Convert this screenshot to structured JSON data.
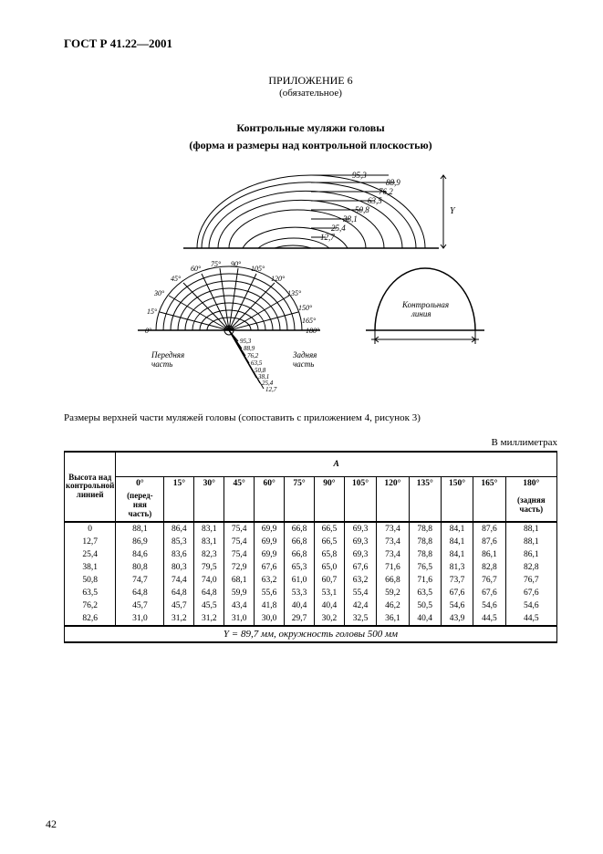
{
  "doc_header": "ГОСТ Р 41.22—2001",
  "appendix_label": "ПРИЛОЖЕНИЕ 6",
  "appendix_note": "(обязательное)",
  "figure_title": "Контрольные муляжи головы",
  "figure_subtitle": "(форма и размеры над контрольной плоскостью)",
  "fig1": {
    "arc_labels": [
      "95,3",
      "88,9",
      "76,2",
      "63,5",
      "50,8",
      "38,1",
      "25,4",
      "12,7"
    ],
    "y_label": "Y",
    "y_label_italic": true
  },
  "fig2": {
    "angle_labels_left": [
      "0°",
      "15°",
      "30°",
      "45°",
      "60°",
      "75°",
      "90°",
      "105°",
      "120°",
      "135°",
      "150°",
      "165°",
      "180°"
    ],
    "radial_labels": [
      "95,3",
      "88,9",
      "76,2",
      "63,5",
      "50,8",
      "38,1",
      "25,4",
      "12,7"
    ],
    "front_label": "Передняя\nчасть",
    "rear_label": "Задняя\nчасть",
    "right_label": "Контрольная\nлиния"
  },
  "caption": "Размеры верхней части муляжей головы (сопоставить с приложением 4, рисунок 3)",
  "units": "В миллиметрах",
  "table": {
    "top_header": "А",
    "row_header": "Высота над\nконтрольной\nлинией",
    "angles": [
      "0°",
      "15°",
      "30°",
      "45°",
      "60°",
      "75°",
      "90°",
      "105°",
      "120°",
      "135°",
      "150°",
      "165°",
      "180°"
    ],
    "angle_note_0": "(перед-\nняя\nчасть)",
    "angle_note_180": "(задняя\nчасть)",
    "heights": [
      "0",
      "12,7",
      "25,4",
      "38,1",
      "50,8",
      "63,5",
      "76,2",
      "82,6"
    ],
    "rows": [
      [
        "88,1",
        "86,4",
        "83,1",
        "75,4",
        "69,9",
        "66,8",
        "66,5",
        "69,3",
        "73,4",
        "78,8",
        "84,1",
        "87,6",
        "88,1"
      ],
      [
        "86,9",
        "85,3",
        "83,1",
        "75,4",
        "69,9",
        "66,8",
        "66,5",
        "69,3",
        "73,4",
        "78,8",
        "84,1",
        "87,6",
        "88,1"
      ],
      [
        "84,6",
        "83,6",
        "82,3",
        "75,4",
        "69,9",
        "66,8",
        "65,8",
        "69,3",
        "73,4",
        "78,8",
        "84,1",
        "86,1",
        "86,1"
      ],
      [
        "80,8",
        "80,3",
        "79,5",
        "72,9",
        "67,6",
        "65,3",
        "65,0",
        "67,6",
        "71,6",
        "76,5",
        "81,3",
        "82,8",
        "82,8"
      ],
      [
        "74,7",
        "74,4",
        "74,0",
        "68,1",
        "63,2",
        "61,0",
        "60,7",
        "63,2",
        "66,8",
        "71,6",
        "73,7",
        "76,7",
        "76,7"
      ],
      [
        "64,8",
        "64,8",
        "64,8",
        "59,9",
        "55,6",
        "53,3",
        "53,1",
        "55,4",
        "59,2",
        "63,5",
        "67,6",
        "67,6",
        "67,6"
      ],
      [
        "45,7",
        "45,7",
        "45,5",
        "43,4",
        "41,8",
        "40,4",
        "40,4",
        "42,4",
        "46,2",
        "50,5",
        "54,6",
        "54,6",
        "54,6"
      ],
      [
        "31,0",
        "31,2",
        "31,2",
        "31,0",
        "30,0",
        "29,7",
        "30,2",
        "32,5",
        "36,1",
        "40,4",
        "43,9",
        "44,5",
        "44,5"
      ]
    ],
    "footer": "Y = 89,7 мм, окружность головы 500 мм"
  },
  "page_num": "42"
}
